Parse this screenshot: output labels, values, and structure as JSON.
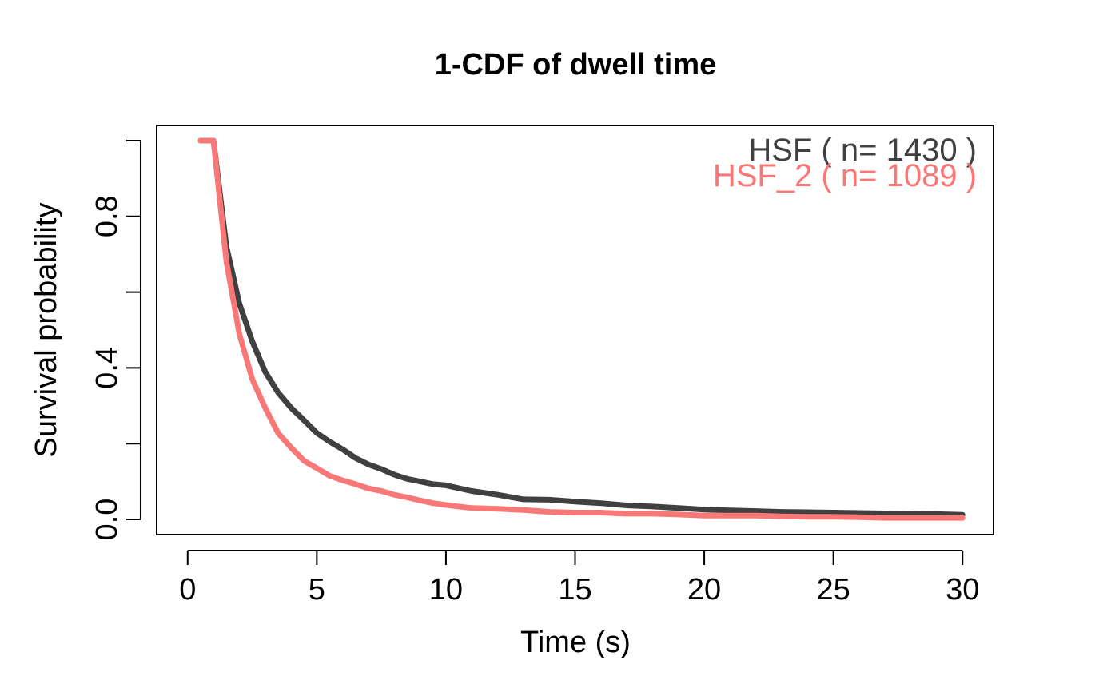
{
  "chart_data": {
    "type": "line",
    "title": "1-CDF of dwell time",
    "xlabel": "Time (s)",
    "ylabel": "Survival probability",
    "xlim": [
      -1.2,
      31.2
    ],
    "ylim": [
      -0.04,
      1.04
    ],
    "x_ticks": [
      0,
      5,
      10,
      15,
      20,
      25,
      30
    ],
    "x_tick_labels": [
      "0",
      "5",
      "10",
      "15",
      "20",
      "25",
      "30"
    ],
    "y_ticks": [
      0.0,
      0.2,
      0.4,
      0.6,
      0.8,
      1.0
    ],
    "y_tick_labels": [
      "0.0",
      "",
      "0.4",
      "",
      "0.8",
      ""
    ],
    "grid": false,
    "legend_position": "top-right",
    "series": [
      {
        "name": "HSF",
        "legend_label": "HSF  ( n= 1430 )",
        "color": "#404040",
        "x": [
          0.5,
          1.0,
          1.5,
          2.0,
          2.5,
          3.0,
          3.5,
          4.0,
          4.5,
          5.0,
          5.5,
          6.0,
          6.5,
          7.0,
          7.5,
          8.0,
          8.5,
          9.0,
          9.5,
          10.0,
          11.0,
          12.0,
          13.0,
          14.0,
          15.0,
          16.0,
          17.0,
          18.0,
          19.0,
          20.0,
          21.0,
          22.0,
          23.0,
          24.0,
          25.0,
          26.0,
          27.0,
          28.0,
          29.0,
          30.0
        ],
        "y": [
          1.0,
          1.0,
          0.72,
          0.57,
          0.47,
          0.39,
          0.335,
          0.295,
          0.262,
          0.228,
          0.205,
          0.185,
          0.162,
          0.145,
          0.133,
          0.118,
          0.107,
          0.1,
          0.093,
          0.09,
          0.075,
          0.065,
          0.053,
          0.052,
          0.047,
          0.043,
          0.037,
          0.034,
          0.03,
          0.026,
          0.024,
          0.022,
          0.02,
          0.019,
          0.018,
          0.017,
          0.016,
          0.015,
          0.014,
          0.012
        ]
      },
      {
        "name": "HSF_2",
        "legend_label": "HSF_2  ( n= 1089 )",
        "color": "#f87878",
        "x": [
          0.5,
          1.0,
          1.5,
          2.0,
          2.5,
          3.0,
          3.5,
          4.0,
          4.5,
          5.0,
          5.5,
          6.0,
          6.5,
          7.0,
          7.5,
          8.0,
          8.5,
          9.0,
          9.5,
          10.0,
          11.0,
          12.0,
          13.0,
          14.0,
          15.0,
          16.0,
          17.0,
          18.0,
          19.0,
          20.0,
          21.0,
          22.0,
          23.0,
          24.0,
          25.0,
          26.0,
          27.0,
          28.0,
          29.0,
          30.0
        ],
        "y": [
          1.0,
          1.0,
          0.68,
          0.49,
          0.37,
          0.295,
          0.228,
          0.19,
          0.155,
          0.135,
          0.115,
          0.103,
          0.093,
          0.082,
          0.075,
          0.065,
          0.058,
          0.05,
          0.043,
          0.038,
          0.03,
          0.028,
          0.025,
          0.02,
          0.018,
          0.018,
          0.015,
          0.015,
          0.013,
          0.01,
          0.01,
          0.01,
          0.008,
          0.007,
          0.007,
          0.006,
          0.004,
          0.004,
          0.004,
          0.004
        ]
      }
    ]
  }
}
